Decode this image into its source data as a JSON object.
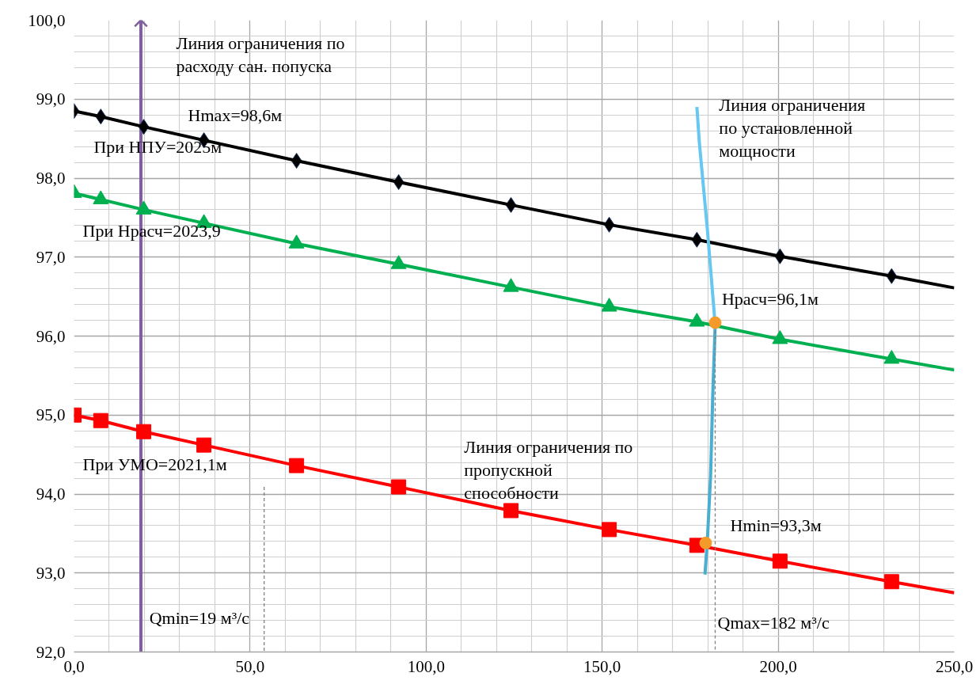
{
  "chart_data": {
    "type": "line",
    "xlim": [
      0,
      250
    ],
    "ylim": [
      92,
      100
    ],
    "xticks": [
      {
        "value": 0,
        "label": "0,0"
      },
      {
        "value": 10,
        "label": null
      },
      {
        "value": 20,
        "label": null
      },
      {
        "value": 30,
        "label": null
      },
      {
        "value": 40,
        "label": null
      },
      {
        "value": 50,
        "label": "50,0"
      },
      {
        "value": 60,
        "label": null
      },
      {
        "value": 70,
        "label": null
      },
      {
        "value": 80,
        "label": null
      },
      {
        "value": 90,
        "label": null
      },
      {
        "value": 100,
        "label": "100,0"
      },
      {
        "value": 110,
        "label": null
      },
      {
        "value": 120,
        "label": null
      },
      {
        "value": 130,
        "label": null
      },
      {
        "value": 140,
        "label": null
      },
      {
        "value": 150,
        "label": "150,0"
      },
      {
        "value": 160,
        "label": null
      },
      {
        "value": 170,
        "label": null
      },
      {
        "value": 180,
        "label": null
      },
      {
        "value": 190,
        "label": null
      },
      {
        "value": 200,
        "label": "200,0"
      },
      {
        "value": 210,
        "label": null
      },
      {
        "value": 220,
        "label": null
      },
      {
        "value": 230,
        "label": null
      },
      {
        "value": 240,
        "label": null
      },
      {
        "value": 250,
        "label": "250,0"
      }
    ],
    "yticks": [
      {
        "value": 92,
        "label": "92,0"
      },
      {
        "value": 92.2,
        "label": null
      },
      {
        "value": 92.4,
        "label": null
      },
      {
        "value": 92.6,
        "label": null
      },
      {
        "value": 92.8,
        "label": null
      },
      {
        "value": 93,
        "label": "93,0"
      },
      {
        "value": 93.2,
        "label": null
      },
      {
        "value": 93.4,
        "label": null
      },
      {
        "value": 93.6,
        "label": null
      },
      {
        "value": 93.8,
        "label": null
      },
      {
        "value": 94,
        "label": "94,0"
      },
      {
        "value": 94.2,
        "label": null
      },
      {
        "value": 94.4,
        "label": null
      },
      {
        "value": 94.6,
        "label": null
      },
      {
        "value": 94.8,
        "label": null
      },
      {
        "value": 95,
        "label": "95,0"
      },
      {
        "value": 95.2,
        "label": null
      },
      {
        "value": 95.4,
        "label": null
      },
      {
        "value": 95.6,
        "label": null
      },
      {
        "value": 95.8,
        "label": null
      },
      {
        "value": 96,
        "label": "96,0"
      },
      {
        "value": 96.2,
        "label": null
      },
      {
        "value": 96.4,
        "label": null
      },
      {
        "value": 96.6,
        "label": null
      },
      {
        "value": 96.8,
        "label": null
      },
      {
        "value": 97,
        "label": "97,0"
      },
      {
        "value": 97.2,
        "label": null
      },
      {
        "value": 97.4,
        "label": null
      },
      {
        "value": 97.6,
        "label": null
      },
      {
        "value": 97.8,
        "label": null
      },
      {
        "value": 98,
        "label": "98,0"
      },
      {
        "value": 98.2,
        "label": null
      },
      {
        "value": 98.4,
        "label": null
      },
      {
        "value": 98.6,
        "label": null
      },
      {
        "value": 98.8,
        "label": null
      },
      {
        "value": 99,
        "label": "99,0"
      },
      {
        "value": 99.2,
        "label": null
      },
      {
        "value": 99.4,
        "label": null
      },
      {
        "value": 99.6,
        "label": null
      },
      {
        "value": 99.8,
        "label": null
      },
      {
        "value": 100,
        "label": "100,0"
      }
    ],
    "grid": true,
    "ref_lines": [
      {
        "axis": "x",
        "value": 19,
        "color": "#7f5f9f"
      }
    ],
    "series": [
      {
        "type": "scatter",
        "color": "#000000",
        "marker": "diamond",
        "x": [
          0,
          7.6,
          19.8,
          36.9,
          63.2,
          92.2,
          124.1,
          152,
          176.9,
          200.5,
          232.2
        ],
        "values": [
          98.85,
          98.78,
          98.65,
          98.48,
          98.22,
          97.95,
          97.66,
          97.41,
          97.22,
          97.01,
          96.76
        ]
      },
      {
        "color": "#000000",
        "marker": "none",
        "x": [
          0,
          7.6,
          19.8,
          36.9,
          63.2,
          92.2,
          124.1,
          152,
          176.9,
          200.5,
          232.2,
          250
        ],
        "values": [
          98.85,
          98.78,
          98.65,
          98.48,
          98.22,
          97.95,
          97.66,
          97.41,
          97.22,
          97.01,
          96.76,
          96.61
        ]
      },
      {
        "type": "scatter",
        "color": "#00b050",
        "marker": "triangle",
        "x": [
          0,
          7.6,
          19.8,
          36.9,
          63.2,
          92.2,
          124.1,
          152,
          176.9,
          200.5,
          232.2
        ],
        "values": [
          97.81,
          97.73,
          97.6,
          97.43,
          97.17,
          96.91,
          96.62,
          96.37,
          96.18,
          95.96,
          95.71
        ]
      },
      {
        "color": "#00b050",
        "marker": "none",
        "x": [
          0,
          7.6,
          19.8,
          36.9,
          63.2,
          92.2,
          124.1,
          152,
          176.9,
          200.5,
          232.2,
          250
        ],
        "values": [
          97.81,
          97.73,
          97.6,
          97.43,
          97.17,
          96.91,
          96.62,
          96.37,
          96.18,
          95.96,
          95.71,
          95.57
        ]
      },
      {
        "type": "scatter",
        "color": "#ff0000",
        "marker": "square",
        "x": [
          0,
          7.6,
          19.8,
          36.9,
          63.2,
          92.2,
          124.1,
          152,
          176.9,
          200.5,
          232.2
        ],
        "values": [
          95.0,
          94.93,
          94.79,
          94.62,
          94.36,
          94.09,
          93.79,
          93.55,
          93.35,
          93.15,
          92.89
        ]
      },
      {
        "color": "#ff0000",
        "marker": "none",
        "x": [
          0,
          7.6,
          19.8,
          36.9,
          63.2,
          92.2,
          124.1,
          152,
          176.9,
          200.5,
          232.2,
          250
        ],
        "values": [
          95.0,
          94.93,
          94.79,
          94.62,
          94.36,
          94.09,
          93.79,
          93.55,
          93.35,
          93.15,
          92.89,
          92.75
        ]
      },
      {
        "type": "scatter",
        "color": "#7f5f9f",
        "marker": "cross",
        "x": [
          19
        ],
        "values": [
          100
        ]
      },
      {
        "color": "#66c7f0",
        "marker": "none",
        "x": [
          176.9,
          177.6,
          179.9,
          182.1
        ],
        "values": [
          98.9,
          98.45,
          97.34,
          96.14
        ]
      },
      {
        "color": "#4aaed0",
        "marker": "none",
        "x": [
          182.1,
          181.4,
          180.8,
          179.9,
          179.2
        ],
        "values": [
          96.14,
          95.24,
          94.24,
          93.43,
          92.98
        ]
      },
      {
        "color": "#808080",
        "marker": "none",
        "line_style": "dashed",
        "x": [
          54,
          54
        ],
        "values": [
          94.09,
          92
        ]
      },
      {
        "color": "#808080",
        "marker": "none",
        "line_style": "dashed",
        "x": [
          182.1,
          182.1
        ],
        "values": [
          96.14,
          92
        ]
      },
      {
        "type": "scatter",
        "color": "#f39a2a",
        "marker": "circle",
        "x": [
          182.1,
          179.4
        ],
        "values": [
          96.17,
          93.38
        ]
      }
    ],
    "annotations": [
      "Линия ограничения по\nрасходу сан. попуска",
      "Hmax=98,6м",
      "При НПУ=2025м",
      "Линия ограничения\nпо установленной\nмощности",
      "При Нрасч=2023,9",
      "Нрасч=96,1м",
      "При УМО=2021,1м",
      "Линия ограничения по\nпропускной\nспособности",
      "Hmin=93,3м",
      "Qmin=19 м³/с",
      "Qmax=182 м³/с"
    ]
  }
}
